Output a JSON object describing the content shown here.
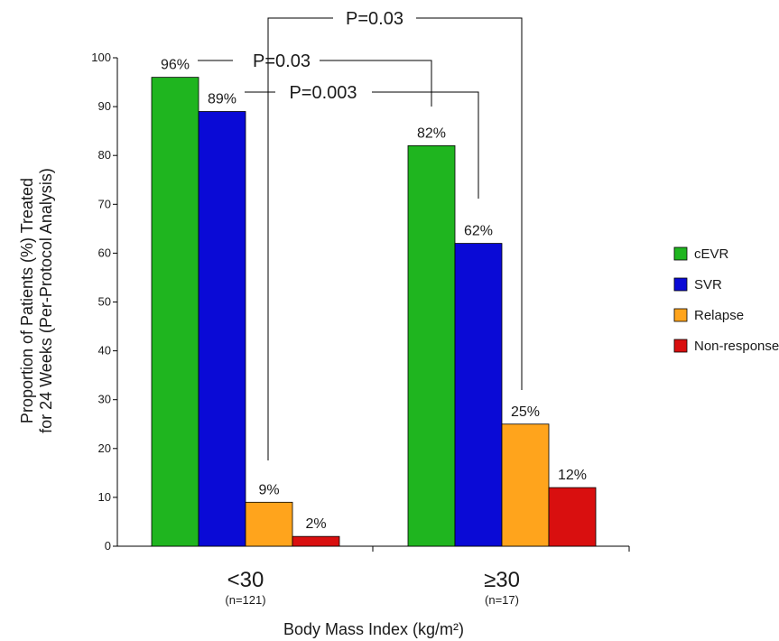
{
  "chart_data": {
    "type": "bar",
    "categories": [
      "<30",
      "≥30"
    ],
    "category_sublabels": [
      "(n=121)",
      "(n=17)"
    ],
    "series": [
      {
        "name": "cEVR",
        "values": [
          96,
          82
        ],
        "labels": [
          "96%",
          "82%"
        ],
        "color": "#1fb51f"
      },
      {
        "name": "SVR",
        "values": [
          89,
          62
        ],
        "labels": [
          "89%",
          "62%"
        ],
        "color": "#0a0ad6"
      },
      {
        "name": "Relapse",
        "values": [
          9,
          25
        ],
        "labels": [
          "9%",
          "25%"
        ],
        "color": "#ffa41c"
      },
      {
        "name": "Non-response",
        "values": [
          2,
          12
        ],
        "labels": [
          "2%",
          "12%"
        ],
        "color": "#d90f0f"
      }
    ],
    "ylabel_line1": "Proportion of Patients (%) Treated",
    "ylabel_line2": "for 24 Weeks (Per-Protocol Analysis)",
    "xlabel": "Body Mass Index (kg/m²)",
    "ylim": [
      0,
      100
    ],
    "yticks": [
      0,
      10,
      20,
      30,
      40,
      50,
      60,
      70,
      80,
      90,
      100
    ],
    "legend_position": "right",
    "grid": false,
    "comparisons": [
      {
        "label": "P=0.03",
        "from_series": 0,
        "from_group": 0,
        "to_series": 0,
        "to_group": 1
      },
      {
        "label": "P=0.003",
        "from_series": 1,
        "from_group": 0,
        "to_series": 1,
        "to_group": 1
      },
      {
        "label": "P=0.03",
        "from_series": 2,
        "from_group": 0,
        "to_series": 2,
        "to_group": 1
      }
    ]
  }
}
